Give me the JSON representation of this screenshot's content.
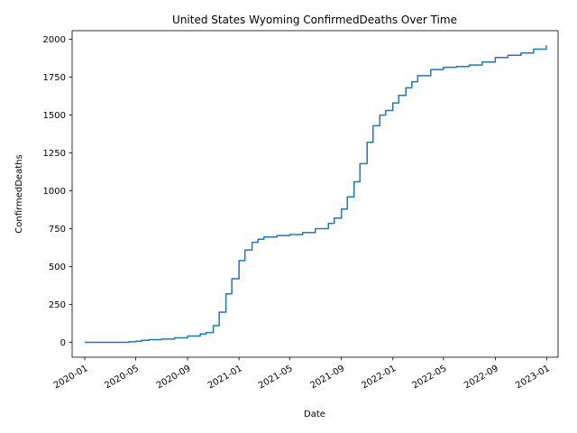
{
  "chart_data": {
    "type": "line",
    "title": "United States Wyoming ConfirmedDeaths Over Time",
    "xlabel": "Date",
    "ylabel": "ConfirmedDeaths",
    "x_ticks": [
      "2020-01",
      "2020-05",
      "2020-09",
      "2021-01",
      "2021-05",
      "2021-09",
      "2022-01",
      "2022-05",
      "2022-09",
      "2023-01"
    ],
    "y_ticks": [
      0,
      250,
      500,
      750,
      1000,
      1250,
      1500,
      1750,
      2000
    ],
    "xlim": [
      "2019-12-02",
      "2023-01-28"
    ],
    "ylim": [
      -98,
      2057
    ],
    "grid": false,
    "series_color": "#1f77b4",
    "series": [
      {
        "x": [
          "2020-01-01",
          "2020-04-01",
          "2020-04-15",
          "2020-05-01",
          "2020-05-15",
          "2020-06-01",
          "2020-07-01",
          "2020-08-01",
          "2020-09-01",
          "2020-10-01",
          "2020-10-15",
          "2020-11-01",
          "2020-11-15",
          "2020-12-01",
          "2020-12-15",
          "2021-01-01",
          "2021-01-15",
          "2021-02-01",
          "2021-02-15",
          "2021-03-01",
          "2021-04-01",
          "2021-05-01",
          "2021-06-01",
          "2021-07-01",
          "2021-08-01",
          "2021-08-15",
          "2021-09-01",
          "2021-09-15",
          "2021-10-01",
          "2021-10-15",
          "2021-11-01",
          "2021-11-15",
          "2021-12-01",
          "2021-12-15",
          "2022-01-01",
          "2022-01-15",
          "2022-02-01",
          "2022-02-15",
          "2022-03-01",
          "2022-04-01",
          "2022-05-01",
          "2022-06-01",
          "2022-07-01",
          "2022-08-01",
          "2022-09-01",
          "2022-10-01",
          "2022-11-01",
          "2022-12-01",
          "2022-12-31"
        ],
        "y": [
          0,
          0,
          4,
          8,
          14,
          18,
          22,
          30,
          42,
          55,
          65,
          110,
          200,
          320,
          420,
          540,
          610,
          660,
          680,
          695,
          705,
          712,
          725,
          750,
          785,
          820,
          880,
          960,
          1060,
          1180,
          1320,
          1430,
          1500,
          1530,
          1580,
          1630,
          1680,
          1720,
          1760,
          1800,
          1815,
          1820,
          1830,
          1850,
          1880,
          1895,
          1910,
          1935,
          1960
        ]
      }
    ]
  }
}
